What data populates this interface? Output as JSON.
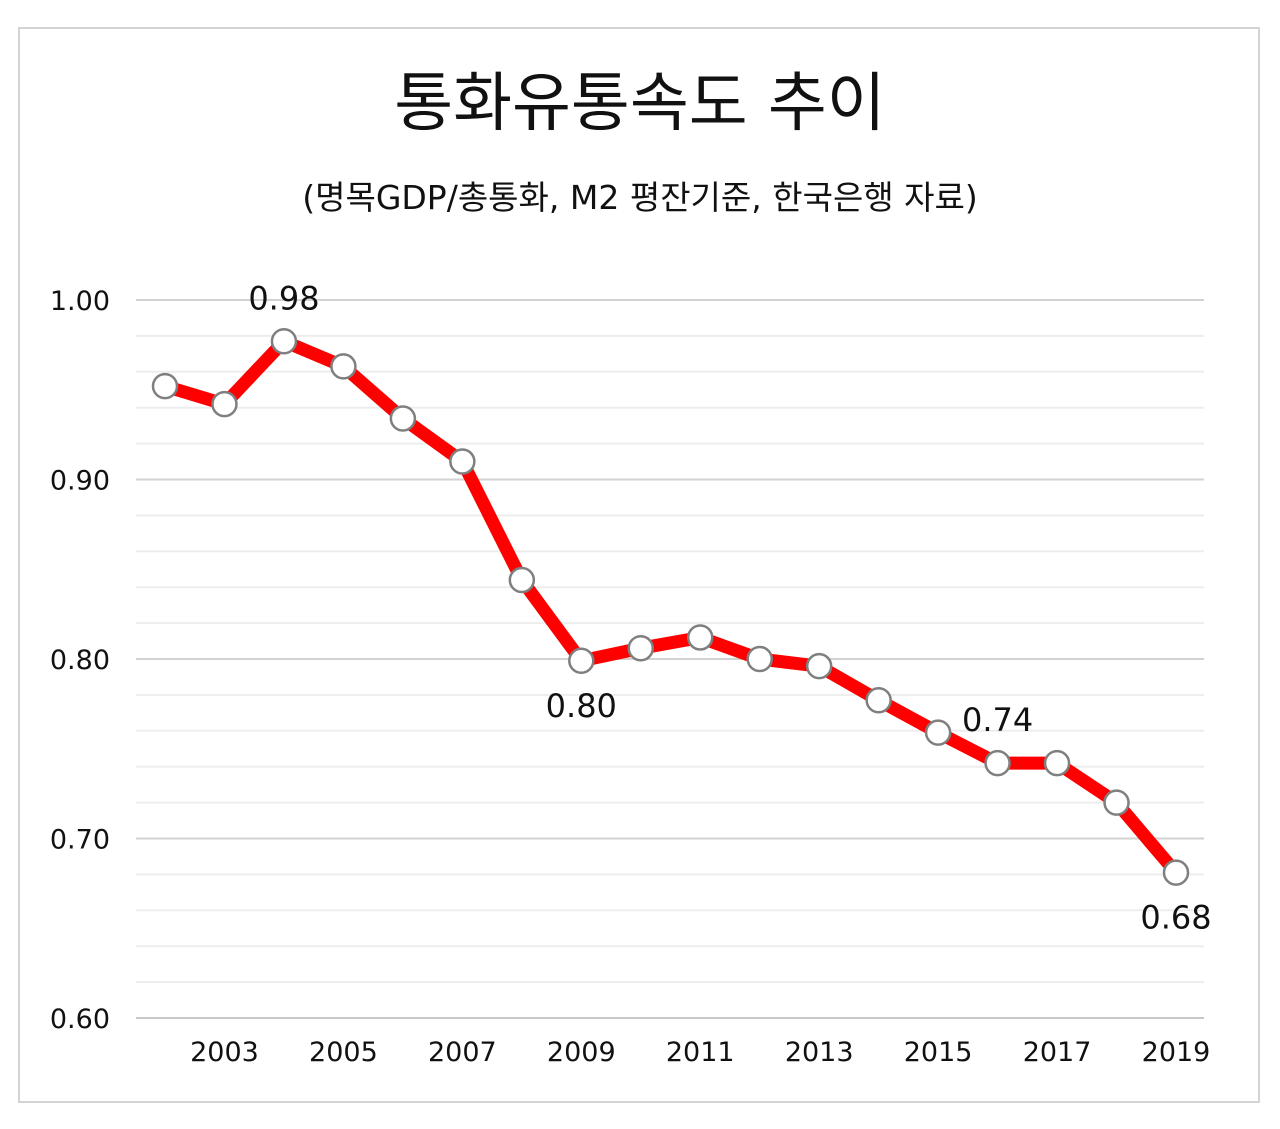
{
  "chart": {
    "title": "통화유통속도 추이",
    "subtitle": "(명목GDP/총통화, M2 평잔기준, 한국은행 자료)"
  },
  "chart_data": {
    "type": "line",
    "x": [
      2002,
      2003,
      2004,
      2005,
      2006,
      2007,
      2008,
      2009,
      2010,
      2011,
      2012,
      2013,
      2014,
      2015,
      2016,
      2017,
      2018,
      2019
    ],
    "series": [
      {
        "values": [
          0.952,
          0.942,
          0.977,
          0.963,
          0.934,
          0.91,
          0.844,
          0.799,
          0.806,
          0.812,
          0.8,
          0.796,
          0.777,
          0.759,
          0.742,
          0.742,
          0.72,
          0.681
        ],
        "color": "#ff0000"
      }
    ],
    "x_tick_labels": [
      "2003",
      "2005",
      "2007",
      "2009",
      "2011",
      "2013",
      "2015",
      "2017",
      "2019"
    ],
    "y_tick_labels": [
      "0.60",
      "0.70",
      "0.80",
      "0.90",
      "1.00"
    ],
    "ylim": [
      0.6,
      1.0
    ],
    "grid": true,
    "legend": "none",
    "annotations": [
      {
        "x": 2004,
        "text": "0.98",
        "position": "above"
      },
      {
        "x": 2009,
        "text": "0.80",
        "position": "below"
      },
      {
        "x": 2016,
        "text": "0.74",
        "position": "above"
      },
      {
        "x": 2019,
        "text": "0.68",
        "position": "below"
      }
    ]
  }
}
